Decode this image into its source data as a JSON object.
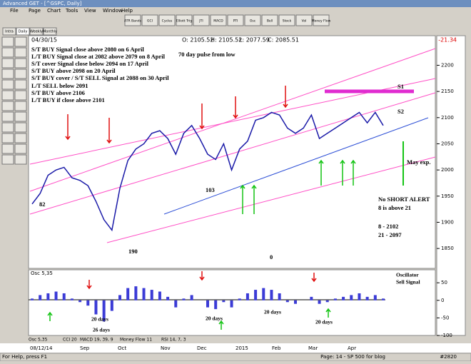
{
  "window": {
    "title": "Advanced GET - [^GSPC, Daily]"
  },
  "menu": [
    "File",
    "Page",
    "Chart",
    "Tools",
    "View",
    "Window",
    "Help"
  ],
  "toolbar": [
    "ATR Bands",
    "GCI",
    "Cycles",
    "Elliott Trig",
    "JTI",
    "MACD",
    "PTI",
    "Osc",
    "Bell",
    "Stock",
    "Vol",
    "Money Flow"
  ],
  "tabs": [
    "Intra",
    "Daily",
    "Weekly",
    "Monthly"
  ],
  "chart_data": {
    "type": "line",
    "date": "04/30/15",
    "ohlc": [
      "O: 2105.52",
      "H: 2105.52",
      "L: 2077.59",
      "C: 2085.51"
    ],
    "change": "-21.34",
    "annotations": [
      "S/T BUY Signal close above 2080 on 6 April",
      "L/T BUY Signal close at 2082 above 2079 on 8 April",
      "S/T cover Signal close below 2094 on 17 April",
      "S/T BUY above 2098 on 20 April",
      "S/T BUY cover / S/T SELL Signal at 2088 on 30 April",
      "70 day pulse from low",
      "L/T SELL below 2091",
      "S/T BUY above 2106",
      "L/T BUY if close above 2101",
      "S1",
      "S2",
      "May exp.",
      "82",
      "103",
      "190",
      "0",
      "No SHORT ALERT",
      "8 is above 21",
      "8   - 2102",
      "21 - 2097"
    ],
    "ylim": [
      1812,
      2247
    ],
    "yticks": [
      2200,
      2150,
      2100,
      2050,
      2000,
      1950,
      1900,
      1850
    ],
    "color": "#1a1aa8",
    "values": [
      1935,
      1955,
      1990,
      2000,
      2005,
      1985,
      1980,
      1970,
      1940,
      1905,
      1885,
      1965,
      2018,
      2040,
      2050,
      2070,
      2075,
      2060,
      2030,
      2070,
      2085,
      2060,
      2030,
      2020,
      2050,
      2000,
      2040,
      2055,
      2095,
      2100,
      2110,
      2105,
      2080,
      2070,
      2080,
      2105,
      2060,
      2070,
      2080,
      2090,
      2100,
      2110,
      2090,
      2110,
      2085
    ],
    "oscillator": {
      "name": "Osc 5,35",
      "ylim": [
        -100,
        85
      ],
      "yticks": [
        50,
        0,
        -50,
        -100
      ],
      "color": "#3b3bd6",
      "values": [
        5,
        15,
        20,
        25,
        20,
        5,
        -5,
        -15,
        -40,
        -60,
        -30,
        15,
        35,
        40,
        35,
        30,
        25,
        10,
        -20,
        5,
        15,
        0,
        -20,
        -25,
        -5,
        -20,
        5,
        20,
        30,
        35,
        30,
        20,
        -5,
        -10,
        0,
        10,
        -10,
        -5,
        5,
        10,
        15,
        20,
        10,
        15,
        5
      ],
      "annotations": [
        "Oscillator",
        "Sell Signal",
        "20 days",
        "26 days",
        "20 days",
        "20 days",
        "20 days"
      ]
    },
    "indicator_tabs": [
      "Osc 5,35",
      "CCI 20",
      "MACD 19, 39, 9",
      "Money Flow 11",
      "RSI 14, 7, 3"
    ],
    "x_labels": [
      "08/12/14",
      "Sep",
      "Oct",
      "Nov",
      "Dec",
      "2015",
      "Feb",
      "Mar",
      "Apr"
    ]
  },
  "status": [
    "For Help, press F1",
    "Page: 14 - SP 500 for blog",
    "#2820"
  ]
}
